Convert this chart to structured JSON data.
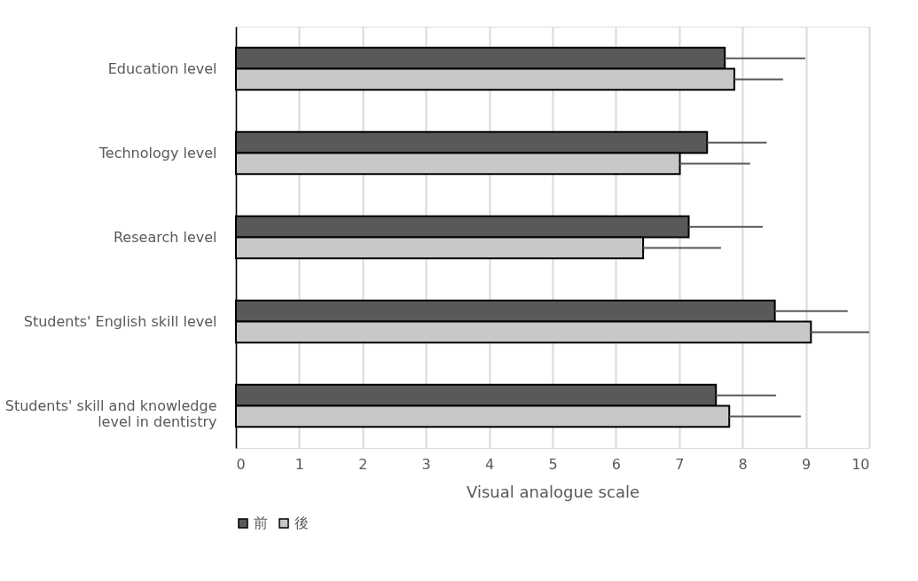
{
  "chart_data": {
    "type": "bar",
    "orientation": "horizontal",
    "xlabel": "Visual analogue scale",
    "categories": [
      "Education level",
      "Technology level",
      "Research level",
      "Students' English skill level",
      "Students' skill and knowledge level in dentistry"
    ],
    "series": [
      {
        "name": "前",
        "color": "#595959",
        "values": [
          7.72,
          7.44,
          7.15,
          8.51,
          7.58
        ],
        "errors": [
          [
            7.72,
            8.99
          ],
          [
            7.44,
            8.38
          ],
          [
            7.15,
            8.32
          ],
          [
            8.51,
            9.66
          ],
          [
            7.58,
            8.53
          ]
        ]
      },
      {
        "name": "後",
        "color": "#c8c8c8",
        "values": [
          7.87,
          7.01,
          6.43,
          9.08,
          7.79
        ],
        "errors": [
          [
            7.87,
            8.64
          ],
          [
            7.01,
            8.12
          ],
          [
            6.43,
            7.66
          ],
          [
            9.08,
            10.0
          ],
          [
            7.79,
            8.92
          ]
        ]
      }
    ],
    "xlim": [
      0,
      10
    ],
    "xticks": [
      0,
      1,
      2,
      3,
      4,
      5,
      6,
      7,
      8,
      9,
      10
    ],
    "grid": "x",
    "legend": "bottom"
  }
}
